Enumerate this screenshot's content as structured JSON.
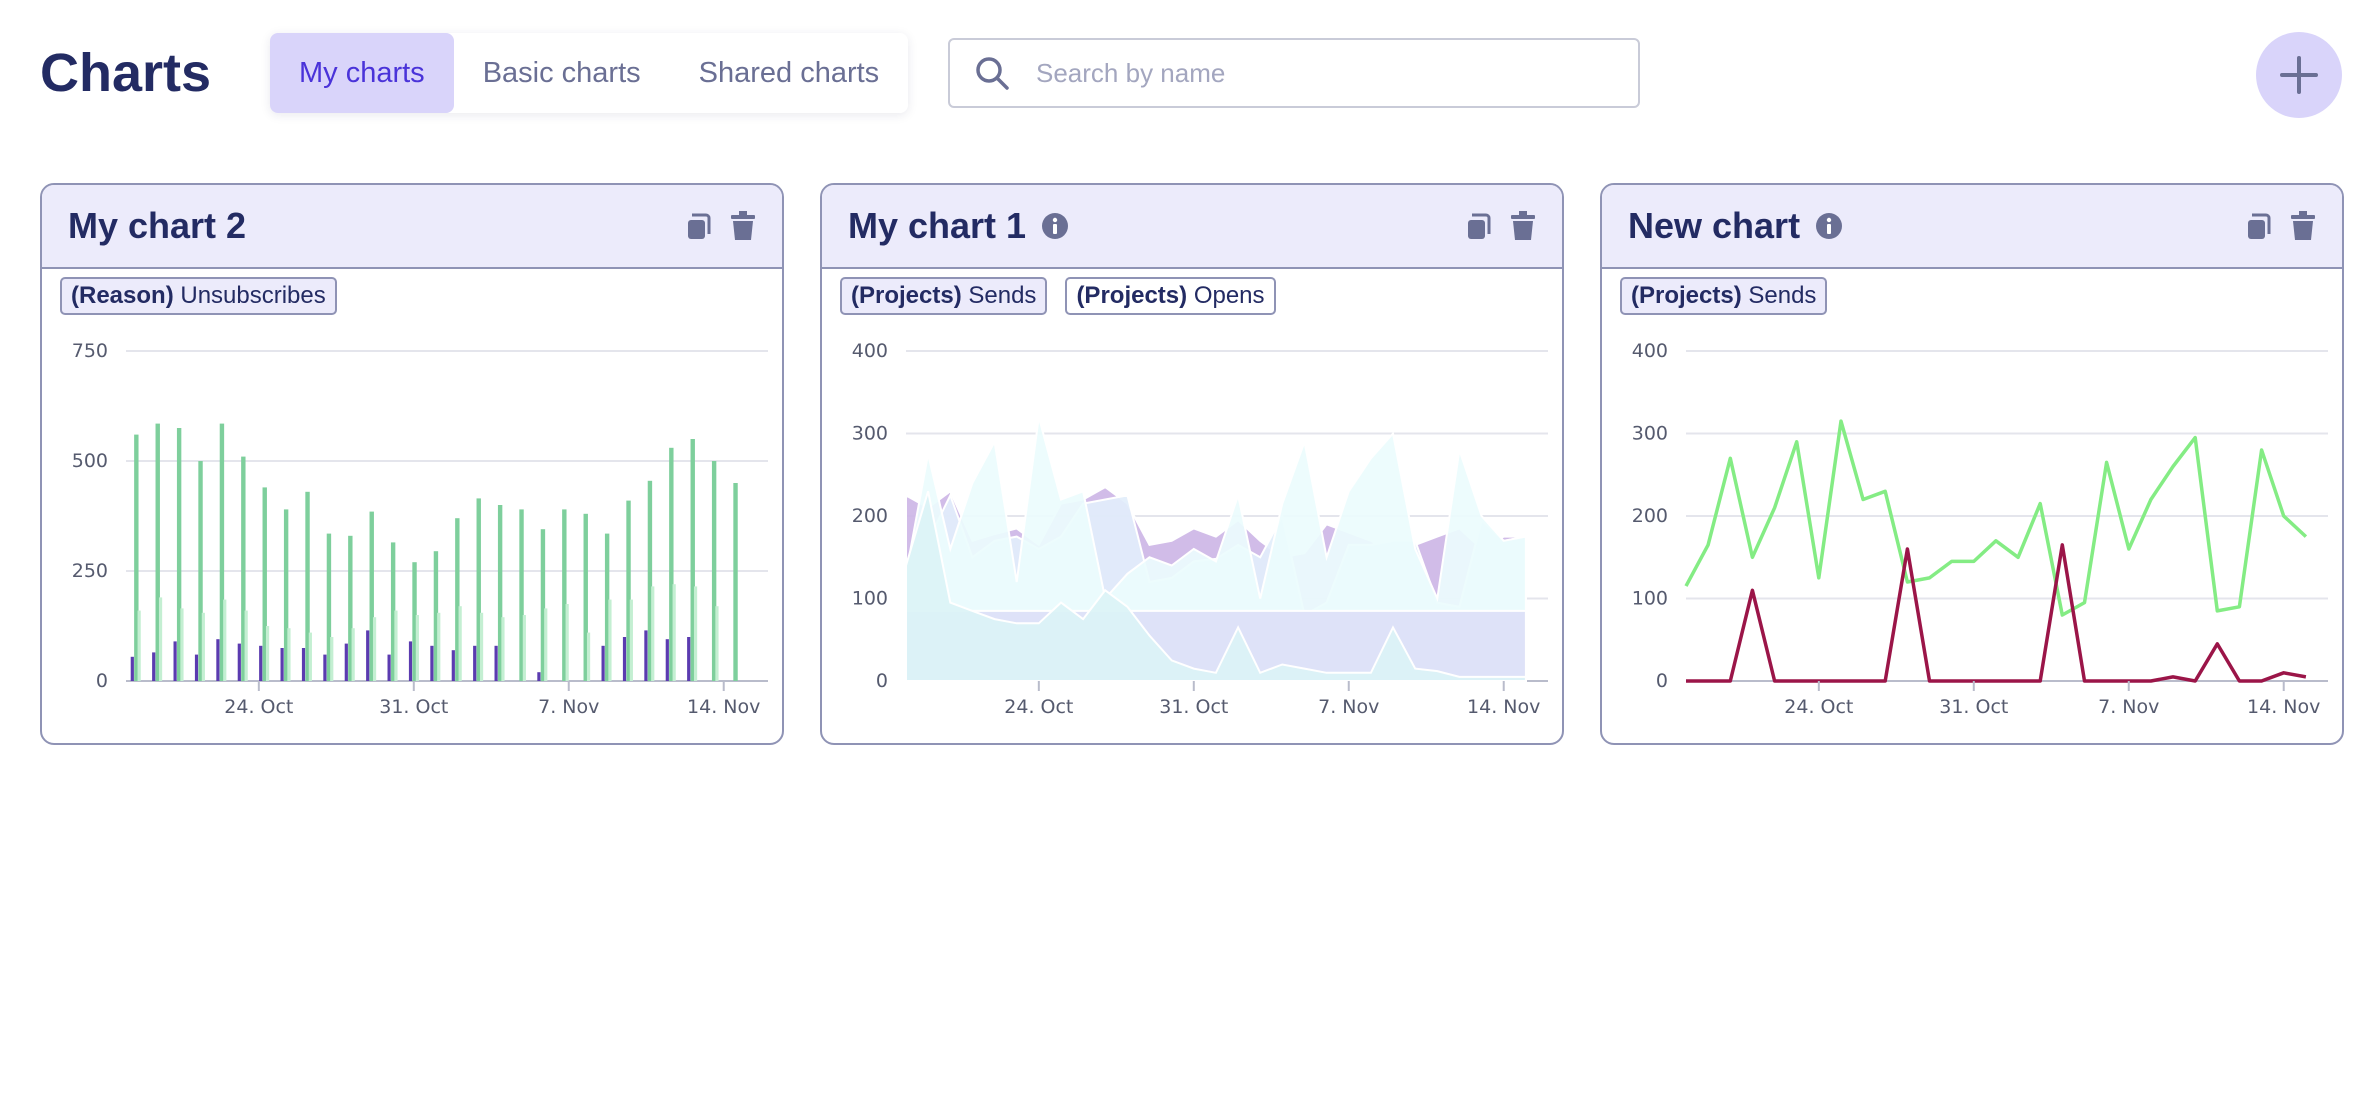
{
  "page": {
    "title": "Charts"
  },
  "tabs": [
    {
      "label": "My charts",
      "active": true
    },
    {
      "label": "Basic charts",
      "active": false
    },
    {
      "label": "Shared charts",
      "active": false
    }
  ],
  "search": {
    "placeholder": "Search by name",
    "value": ""
  },
  "add_button": {
    "icon": "plus-icon"
  },
  "colors": {
    "accent": "#4a33d9",
    "title": "#232b63",
    "accent_bg": "#d9d4fa",
    "card_header": "#ecebfb"
  },
  "cards": [
    {
      "title": "My chart 2",
      "has_info": false,
      "tags": [
        {
          "key": "(Reason)",
          "value": "Unsubscribes"
        }
      ],
      "chart_data": {
        "type": "bar",
        "x_ticks": [
          "24. Oct",
          "31. Oct",
          "7. Nov",
          "14. Nov"
        ],
        "x_tick_days": [
          6,
          13,
          20,
          27
        ],
        "y_ticks": [
          0,
          250,
          500,
          750
        ],
        "ylim": [
          0,
          750
        ],
        "x_start_date": "2023-10-18",
        "series": [
          {
            "color": "#5b3bb0",
            "values": [
              55,
              65,
              90,
              60,
              95,
              85,
              80,
              75,
              75,
              60,
              85,
              115,
              60,
              90,
              80,
              70,
              80,
              80,
              0,
              20,
              0,
              0,
              80,
              100,
              115,
              95,
              100
            ]
          },
          {
            "color": "#7ecf9c",
            "values": [
              560,
              585,
              575,
              500,
              585,
              510,
              440,
              390,
              430,
              335,
              330,
              385,
              315,
              270,
              295,
              370,
              415,
              400,
              390,
              345,
              390,
              380,
              335,
              410,
              455,
              530,
              550,
              500,
              450
            ]
          },
          {
            "color": "#c4efd2",
            "values": [
              160,
              190,
              165,
              155,
              185,
              160,
              125,
              120,
              110,
              100,
              120,
              145,
              160,
              150,
              155,
              170,
              155,
              145,
              150,
              165,
              175,
              110,
              185,
              185,
              215,
              220,
              215,
              170
            ]
          }
        ]
      }
    },
    {
      "title": "My chart 1",
      "has_info": true,
      "tags": [
        {
          "key": "(Projects)",
          "value": "Sends",
          "outline": false
        },
        {
          "key": "(Projects)",
          "value": "Opens",
          "outline": true
        }
      ],
      "chart_data": {
        "type": "area",
        "x_ticks": [
          "24. Oct",
          "31. Oct",
          "7. Nov",
          "14. Nov"
        ],
        "x_tick_days": [
          6,
          13,
          20,
          27
        ],
        "y_ticks": [
          0,
          100,
          200,
          300,
          400
        ],
        "ylim": [
          0,
          400
        ],
        "x_start_date": "2023-10-18",
        "series": [
          {
            "color": "#cdb6e6",
            "values": [
              225,
              210,
              230,
              170,
              178,
              185,
              165,
              215,
              220,
              235,
              215,
              165,
              170,
              185,
              175,
              195,
              170,
              150,
              155,
              190,
              180,
              170,
              155,
              165,
              175,
              185,
              160,
              175,
              175
            ]
          },
          {
            "color": "#e2eefb",
            "values": [
              120,
              170,
              225,
              150,
              170,
              175,
              160,
              175,
              215,
              220,
              225,
              120,
              125,
              145,
              148,
              165,
              150,
              200,
              80,
              95,
              165,
              165,
              170,
              170,
              95,
              90,
              195,
              170,
              175
            ]
          },
          {
            "color": "#ebfcfd",
            "values": [
              130,
              275,
              160,
              240,
              290,
              120,
              320,
              220,
              230,
              100,
              130,
              150,
              140,
              160,
              145,
              225,
              100,
              215,
              290,
              150,
              230,
              270,
              300,
              160,
              100,
              280,
              200,
              170,
              175
            ]
          },
          {
            "color": "#dcdff7",
            "values": [
              85,
              85,
              85,
              85,
              85,
              85,
              85,
              85,
              85,
              85,
              85,
              85,
              85,
              85,
              85,
              85,
              85,
              85,
              85,
              85,
              85,
              85,
              85,
              85,
              85,
              85,
              85,
              85,
              85
            ]
          },
          {
            "color": "#dbf3f6",
            "values": [
              140,
              230,
              95,
              85,
              75,
              70,
              70,
              95,
              75,
              110,
              90,
              55,
              25,
              15,
              10,
              65,
              10,
              20,
              15,
              10,
              10,
              10,
              65,
              15,
              12,
              5,
              5,
              5,
              5
            ]
          }
        ]
      }
    },
    {
      "title": "New chart",
      "has_info": true,
      "tags": [
        {
          "key": "(Projects)",
          "value": "Sends"
        }
      ],
      "chart_data": {
        "type": "line",
        "x_ticks": [
          "24. Oct",
          "31. Oct",
          "7. Nov",
          "14. Nov"
        ],
        "x_tick_days": [
          6,
          13,
          20,
          27
        ],
        "y_ticks": [
          0,
          100,
          200,
          300,
          400
        ],
        "ylim": [
          0,
          400
        ],
        "x_start_date": "2023-10-18",
        "series": [
          {
            "color": "#84ec84",
            "values": [
              115,
              165,
              270,
              150,
              210,
              290,
              125,
              315,
              220,
              230,
              120,
              125,
              145,
              145,
              170,
              150,
              215,
              80,
              95,
              265,
              160,
              220,
              260,
              295,
              85,
              90,
              280,
              200,
              175
            ]
          },
          {
            "color": "#9b1548",
            "values": [
              0,
              0,
              0,
              110,
              0,
              0,
              0,
              0,
              0,
              0,
              160,
              0,
              0,
              0,
              0,
              0,
              0,
              165,
              0,
              0,
              0,
              0,
              5,
              0,
              45,
              0,
              0,
              10,
              5
            ]
          }
        ]
      }
    }
  ]
}
